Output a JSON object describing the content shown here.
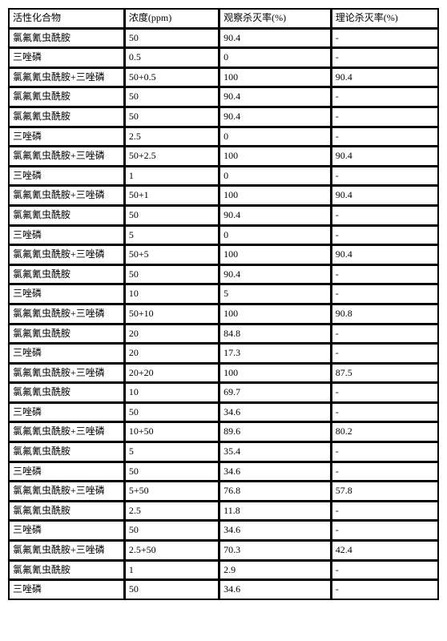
{
  "table": {
    "columns": [
      "活性化合物",
      "浓度(ppm)",
      "观察杀灭率(%)",
      "理论杀灭率(%)"
    ],
    "rows": [
      [
        "氯氟氰虫酰胺",
        "50",
        "90.4",
        "-"
      ],
      [
        "三唑磷",
        "0.5",
        "0",
        "-"
      ],
      [
        "氯氟氰虫酰胺+三唑磷",
        "50+0.5",
        "100",
        "90.4"
      ],
      [
        "氯氟氰虫酰胺",
        "50",
        "90.4",
        "-"
      ],
      [
        "氯氟氰虫酰胺",
        "50",
        "90.4",
        "-"
      ],
      [
        "三唑磷",
        "2.5",
        "0",
        "-"
      ],
      [
        "氯氟氰虫酰胺+三唑磷",
        "50+2.5",
        "100",
        "90.4"
      ],
      [
        "三唑磷",
        "1",
        "0",
        "-"
      ],
      [
        "氯氟氰虫酰胺+三唑磷",
        "50+1",
        "100",
        "90.4"
      ],
      [
        "氯氟氰虫酰胺",
        "50",
        "90.4",
        "-"
      ],
      [
        "三唑磷",
        "5",
        "0",
        "-"
      ],
      [
        "氯氟氰虫酰胺+三唑磷",
        "50+5",
        "100",
        "90.4"
      ],
      [
        "氯氟氰虫酰胺",
        "50",
        "90.4",
        "-"
      ],
      [
        "三唑磷",
        "10",
        " 5",
        "-"
      ],
      [
        "氯氟氰虫酰胺+三唑磷",
        "50+10",
        " 100",
        "90.8"
      ],
      [
        "氯氟氰虫酰胺",
        "20",
        "84.8",
        "-"
      ],
      [
        "三唑磷",
        "20",
        "17.3",
        "-"
      ],
      [
        "氯氟氰虫酰胺+三唑磷",
        "20+20",
        " 100",
        "87.5"
      ],
      [
        "氯氟氰虫酰胺",
        "10",
        "69.7",
        "-"
      ],
      [
        "三唑磷",
        "50",
        "34.6",
        "-"
      ],
      [
        "氯氟氰虫酰胺+三唑磷",
        "10+50",
        "89.6",
        "  80.2"
      ],
      [
        "氯氟氰虫酰胺",
        "5",
        "35.4",
        "-"
      ],
      [
        "三唑磷",
        "50",
        "34.6",
        "-"
      ],
      [
        "氯氟氰虫酰胺+三唑磷",
        "5+50",
        "76.8",
        "57.8"
      ],
      [
        "氯氟氰虫酰胺",
        " 2.5",
        "11.8",
        "-"
      ],
      [
        "三唑磷",
        " 50",
        " 34.6",
        "-"
      ],
      [
        "氯氟氰虫酰胺+三唑磷",
        "2.5+50",
        "70.3",
        "42.4"
      ],
      [
        "氯氟氰虫酰胺",
        "1",
        "2.9",
        "-"
      ],
      [
        "三唑磷",
        "50",
        "34.6",
        "-"
      ]
    ]
  }
}
